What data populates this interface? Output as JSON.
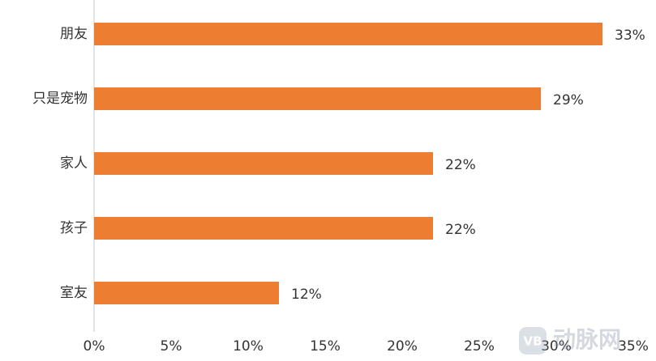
{
  "chart_data": {
    "type": "bar",
    "orientation": "horizontal",
    "categories": [
      "朋友",
      "只是宠物",
      "家人",
      "孩子",
      "室友"
    ],
    "values": [
      33,
      29,
      22,
      22,
      12
    ],
    "value_labels": [
      "33%",
      "29%",
      "22%",
      "22%",
      "12%"
    ],
    "color": "#ed7d31",
    "xlim": [
      0,
      35
    ],
    "xticks": [
      {
        "value": 0,
        "label": "0%"
      },
      {
        "value": 5,
        "label": "5%"
      },
      {
        "value": 10,
        "label": "10%"
      },
      {
        "value": 15,
        "label": "15%"
      },
      {
        "value": 20,
        "label": "20%"
      },
      {
        "value": 25,
        "label": "25%"
      },
      {
        "value": 30,
        "label": "30%"
      },
      {
        "value": 35,
        "label": "35%"
      }
    ],
    "grid": false
  },
  "watermark": {
    "logo": "VB",
    "text": "动脉网"
  }
}
